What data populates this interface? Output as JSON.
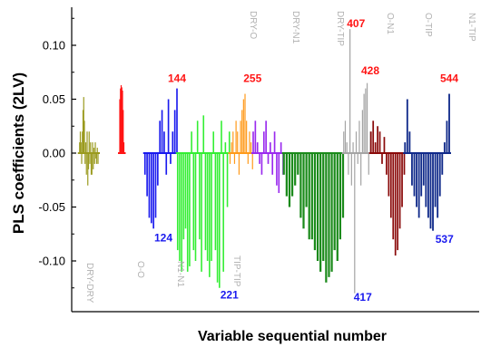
{
  "chart_data": {
    "type": "bar",
    "title": "",
    "xlabel": "Variable sequential number",
    "ylabel": "PLS coefficients (2LV)",
    "ylim": [
      -0.135,
      0.135
    ],
    "yticks": [
      "0.10",
      "0.05",
      "0.00",
      "-0.05",
      "-0.10"
    ],
    "ytick_values": [
      0.1,
      0.05,
      0.0,
      -0.05,
      -0.1
    ],
    "xlim": [
      0,
      580
    ],
    "grid": false,
    "legend": "none",
    "groups": [
      {
        "label": "DRY-DRY",
        "color": "#9a9a1e",
        "range": [
          1,
          28
        ],
        "values": [
          0.01,
          0.02,
          0.01,
          -0.01,
          0.02,
          0.04,
          0.052,
          0.03,
          -0.01,
          0.01,
          -0.02,
          0.02,
          -0.03,
          -0.015,
          0.02,
          -0.01,
          0.01,
          -0.02,
          -0.02,
          0.01,
          -0.015,
          0.005,
          -0.01,
          0.01,
          -0.005,
          -0.01,
          0.005,
          -0.01
        ]
      },
      {
        "label": "O-O",
        "color": "#ff1515",
        "range": [
          60,
          66
        ],
        "values": [
          0.05,
          0.06,
          0.063,
          0.061,
          0.058,
          0.04,
          0.01
        ]
      },
      {
        "label": "N1-N1",
        "color": "#1a1aee",
        "range": [
          97,
          144
        ],
        "values": [
          -0.02,
          -0.04,
          -0.06,
          -0.065,
          -0.07,
          -0.06,
          -0.03,
          0.03,
          0.04,
          0.02,
          -0.02,
          0.05,
          -0.01,
          0.02,
          0.04,
          0.06
        ]
      },
      {
        "label": "TIP-TIP",
        "color": "#33ee33",
        "range": [
          145,
          221
        ],
        "values": [
          -0.09,
          -0.1,
          -0.11,
          -0.08,
          -0.07,
          -0.11,
          -0.105,
          0.02,
          -0.09,
          -0.1,
          0.03,
          -0.08,
          -0.11,
          0.035,
          -0.09,
          -0.1,
          -0.115,
          -0.1,
          0.02,
          -0.09,
          -0.12,
          -0.125,
          0.03,
          -0.11,
          0.01,
          -0.05,
          0.02
        ]
      },
      {
        "label": "DRY-O",
        "color": "#ff9a1a",
        "range": [
          222,
          255
        ],
        "values": [
          -0.01,
          0.01,
          0.02,
          -0.01,
          0.03,
          0.02,
          -0.02,
          0.03,
          0.04,
          0.05,
          0.055,
          0.03,
          -0.01,
          0.02,
          0.01,
          -0.015
        ]
      },
      {
        "label": "DRY-N1",
        "color": "#9a2aee",
        "range": [
          256,
          300
        ],
        "values": [
          0.02,
          0.03,
          0.01,
          -0.01,
          -0.02,
          0.02,
          0.03,
          -0.01,
          0.01,
          -0.02,
          0.02,
          -0.03,
          -0.037,
          0.01,
          -0.02
        ]
      },
      {
        "label": "DRY-TIP",
        "color": "#1a8a1a",
        "range": [
          301,
          388
        ],
        "values": [
          -0.02,
          -0.04,
          -0.05,
          -0.04,
          -0.03,
          -0.02,
          -0.06,
          -0.07,
          -0.05,
          -0.08,
          -0.08,
          -0.09,
          -0.1,
          -0.11,
          -0.1,
          -0.12,
          -0.115,
          -0.11,
          -0.09,
          -0.1,
          -0.08,
          -0.06
        ]
      },
      {
        "label": "O-N1",
        "color": "#a5a5a5",
        "range": [
          389,
          428
        ],
        "values": [
          0.02,
          0.03,
          0.01,
          -0.02,
          0.115,
          -0.03,
          0.01,
          -0.13,
          0.02,
          -0.01,
          0.03,
          -0.03,
          0.04,
          0.055,
          0.06,
          0.065,
          -0.02,
          0.02
        ]
      },
      {
        "label": "O-TIP",
        "color": "#8a0a0a",
        "range": [
          429,
          478
        ],
        "values": [
          0.02,
          0.03,
          0.01,
          0.025,
          0.02,
          -0.01,
          0.015,
          -0.02,
          -0.04,
          -0.06,
          -0.08,
          -0.095,
          -0.09,
          -0.07,
          -0.05,
          -0.02
        ]
      },
      {
        "label": "N1-TIP",
        "color": "#102a8a",
        "range": [
          479,
          544
        ],
        "values": [
          0.01,
          0.05,
          0.02,
          -0.03,
          -0.04,
          -0.05,
          -0.06,
          -0.04,
          -0.03,
          -0.05,
          -0.06,
          -0.07,
          -0.072,
          -0.05,
          -0.06,
          -0.04,
          -0.02,
          0.01,
          0.03,
          0.055
        ]
      }
    ],
    "annotations": [
      {
        "text": "144",
        "x": 144,
        "y": 0.066,
        "color": "#ff1515"
      },
      {
        "text": "124",
        "x": 124,
        "y": -0.082,
        "color": "#1a1aee"
      },
      {
        "text": "221",
        "x": 221,
        "y": -0.135,
        "color": "#1a1aee"
      },
      {
        "text": "255",
        "x": 255,
        "y": 0.066,
        "color": "#ff1515"
      },
      {
        "text": "407",
        "x": 407,
        "y": 0.117,
        "color": "#ff1515"
      },
      {
        "text": "428",
        "x": 428,
        "y": 0.073,
        "color": "#ff1515"
      },
      {
        "text": "417",
        "x": 417,
        "y": -0.137,
        "color": "#1a1aee"
      },
      {
        "text": "544",
        "x": 544,
        "y": 0.066,
        "color": "#ff1515"
      },
      {
        "text": "537",
        "x": 537,
        "y": -0.083,
        "color": "#1a1aee"
      }
    ]
  }
}
